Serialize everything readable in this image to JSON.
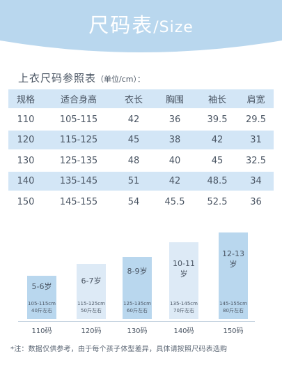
{
  "header": {
    "title_cn": "尺码表",
    "title_en": "/Size",
    "bg_color": "#b9d7ee"
  },
  "subtitle": {
    "main": "上衣尺码参照表",
    "unit": "（单位/cm）："
  },
  "table": {
    "headers": [
      "规格",
      "适合身高",
      "衣长",
      "胸围",
      "袖长",
      "肩宽"
    ],
    "rows": [
      [
        "110",
        "105-115",
        "42",
        "36",
        "39.5",
        "29.5"
      ],
      [
        "120",
        "115-125",
        "45",
        "38",
        "42",
        "31"
      ],
      [
        "130",
        "125-135",
        "48",
        "40",
        "45",
        "32.5"
      ],
      [
        "140",
        "135-145",
        "51",
        "42",
        "48.5",
        "34"
      ],
      [
        "150",
        "145-155",
        "54",
        "45.5",
        "52.5",
        "36"
      ]
    ]
  },
  "bars": [
    {
      "size": "110码",
      "age": "5-6岁",
      "height": "105-115cm",
      "weight": "40斤左右",
      "color": "#b9d7ee"
    },
    {
      "size": "120码",
      "age": "6-7岁",
      "height": "115-125cm",
      "weight": "50斤左右",
      "color": "#ddeaf6"
    },
    {
      "size": "130码",
      "age": "8-9岁",
      "height": "125-135cm",
      "weight": "60斤左右",
      "color": "#b9d7ee"
    },
    {
      "size": "140码",
      "age": "10-11岁",
      "height": "135-145cm",
      "weight": "70斤左右",
      "color": "#ddeaf6"
    },
    {
      "size": "150码",
      "age": "12-13岁",
      "height": "145-155cm",
      "weight": "80斤左右",
      "color": "#b9d7ee"
    }
  ],
  "note": "*注：数据仅供参考，由于每个孩子体型差异，具体请按照尺码表选购"
}
